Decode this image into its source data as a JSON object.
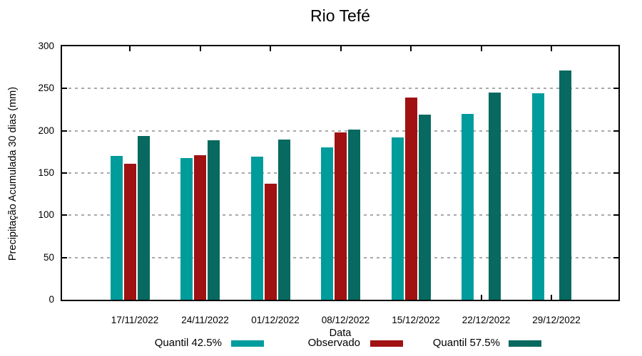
{
  "chart_data": {
    "type": "bar",
    "title": "Rio Tefé",
    "xlabel": "Data",
    "ylabel": "Precipitação Acumulada 30 dias (mm)",
    "ylim": [
      0,
      300
    ],
    "yticks": [
      0,
      50,
      100,
      150,
      200,
      250,
      300
    ],
    "grid": "horizontal-dashed",
    "legend_position": "bottom",
    "categories": [
      "17/11/2022",
      "24/11/2022",
      "01/12/2022",
      "08/12/2022",
      "15/12/2022",
      "22/12/2022",
      "29/12/2022"
    ],
    "series": [
      {
        "name": "Quantil 42.5%",
        "color": "#009c9c",
        "values": [
          170,
          168,
          169,
          180,
          192,
          220,
          244
        ]
      },
      {
        "name": "Observado",
        "color": "#a01111",
        "values": [
          161,
          171,
          137,
          198,
          239,
          null,
          null
        ]
      },
      {
        "name": "Quantil 57.5%",
        "color": "#07695f",
        "values": [
          194,
          189,
          190,
          201,
          219,
          245,
          271
        ]
      }
    ],
    "colors": {
      "axis": "#000000",
      "gridline": "#a9a9a9",
      "background": "#ffffff"
    }
  }
}
